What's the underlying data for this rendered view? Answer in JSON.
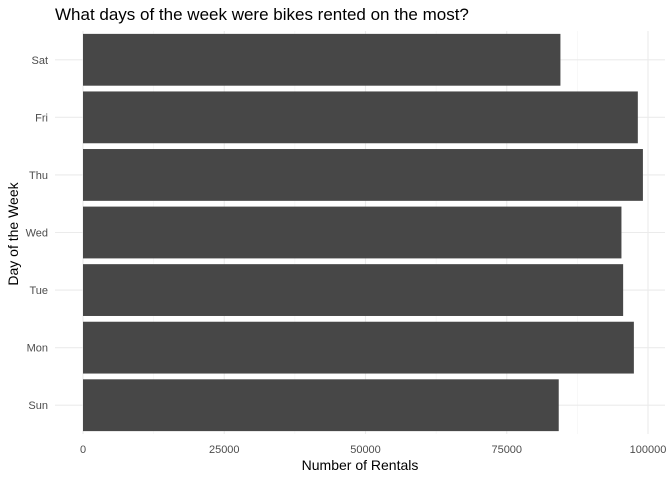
{
  "chart_data": {
    "type": "bar",
    "orientation": "horizontal",
    "title": "What days of the week were bikes rented on the most?",
    "xlabel": "Number of Rentals",
    "ylabel": "Day of the Week",
    "categories": [
      "Sun",
      "Mon",
      "Tue",
      "Wed",
      "Thu",
      "Fri",
      "Sat"
    ],
    "values": [
      84200,
      97500,
      95600,
      95300,
      99100,
      98200,
      84500
    ],
    "xlim": [
      0,
      103000
    ],
    "x_ticks": [
      0,
      25000,
      50000,
      75000,
      100000
    ],
    "x_tick_labels": [
      "0",
      "25000",
      "50000",
      "75000",
      "100000"
    ],
    "bar_color": "#474747",
    "grid": true,
    "legend": "none"
  }
}
